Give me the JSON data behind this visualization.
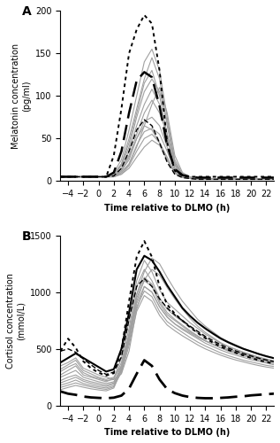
{
  "time": [
    -5,
    -4,
    -3,
    -2,
    -1,
    0,
    1,
    2,
    3,
    4,
    5,
    6,
    7,
    8,
    9,
    10,
    11,
    12,
    13,
    14,
    15,
    16,
    17,
    18,
    19,
    20,
    21,
    22,
    23
  ],
  "panel_A_title": "A",
  "panel_B_title": "B",
  "A_ylabel": "Melatonin concentration\n(pg/ml)",
  "B_ylabel": "Cortisol concentration\n(mmol/L)",
  "xlabel": "Time relative to DLMO (h)",
  "A_ylim": [
    0,
    200
  ],
  "B_ylim": [
    0,
    1500
  ],
  "xlim": [
    -5,
    23
  ],
  "A_yticks": [
    0,
    50,
    100,
    150,
    200
  ],
  "B_yticks": [
    0,
    500,
    1000,
    1500
  ],
  "xticks": [
    -4,
    -2,
    0,
    2,
    4,
    6,
    8,
    10,
    12,
    14,
    16,
    18,
    20,
    22
  ],
  "grey_color": "#a0a0a0",
  "black_color": "#000000",
  "A_grey_lines": [
    [
      5,
      5,
      5,
      5,
      5,
      5,
      5,
      5,
      10,
      20,
      40,
      65,
      90,
      110,
      80,
      30,
      10,
      5,
      3,
      2,
      2,
      2,
      2,
      2,
      2,
      2,
      2,
      2,
      2
    ],
    [
      5,
      5,
      5,
      5,
      5,
      5,
      5,
      8,
      18,
      40,
      75,
      105,
      120,
      105,
      70,
      25,
      8,
      4,
      3,
      2,
      2,
      2,
      2,
      2,
      2,
      2,
      2,
      2,
      2
    ],
    [
      5,
      5,
      5,
      5,
      5,
      5,
      5,
      8,
      15,
      30,
      55,
      80,
      95,
      80,
      55,
      20,
      7,
      4,
      3,
      2,
      2,
      2,
      2,
      2,
      2,
      2,
      2,
      2,
      2
    ],
    [
      5,
      5,
      5,
      5,
      5,
      5,
      5,
      5,
      12,
      25,
      50,
      70,
      75,
      65,
      40,
      15,
      6,
      4,
      3,
      2,
      2,
      2,
      2,
      2,
      2,
      2,
      2,
      2,
      2
    ],
    [
      5,
      5,
      5,
      5,
      5,
      5,
      5,
      5,
      10,
      20,
      42,
      58,
      62,
      55,
      35,
      12,
      5,
      3,
      2,
      2,
      2,
      2,
      2,
      2,
      2,
      2,
      2,
      2,
      2
    ],
    [
      5,
      5,
      5,
      5,
      5,
      5,
      5,
      5,
      8,
      18,
      35,
      50,
      55,
      45,
      28,
      10,
      5,
      3,
      2,
      2,
      2,
      2,
      2,
      2,
      2,
      2,
      2,
      2,
      2
    ],
    [
      5,
      5,
      5,
      5,
      5,
      5,
      5,
      6,
      12,
      28,
      50,
      65,
      60,
      45,
      25,
      10,
      5,
      3,
      2,
      2,
      2,
      2,
      2,
      2,
      2,
      2,
      2,
      2,
      2
    ],
    [
      5,
      5,
      5,
      5,
      5,
      5,
      5,
      5,
      8,
      15,
      28,
      40,
      48,
      42,
      25,
      9,
      4,
      3,
      2,
      2,
      2,
      2,
      2,
      2,
      2,
      2,
      2,
      2,
      2
    ],
    [
      5,
      5,
      5,
      5,
      5,
      5,
      5,
      8,
      20,
      45,
      80,
      115,
      130,
      100,
      55,
      18,
      7,
      4,
      3,
      2,
      2,
      2,
      2,
      2,
      2,
      2,
      2,
      2,
      2
    ],
    [
      5,
      5,
      5,
      5,
      5,
      5,
      5,
      10,
      25,
      60,
      100,
      140,
      155,
      130,
      75,
      22,
      8,
      4,
      3,
      2,
      2,
      2,
      2,
      2,
      2,
      2,
      2,
      2,
      2
    ],
    [
      5,
      5,
      5,
      5,
      5,
      5,
      5,
      8,
      20,
      50,
      85,
      120,
      145,
      120,
      65,
      20,
      7,
      4,
      3,
      2,
      2,
      2,
      2,
      2,
      2,
      2,
      2,
      2,
      2
    ],
    [
      5,
      5,
      5,
      5,
      5,
      5,
      5,
      6,
      14,
      35,
      65,
      90,
      108,
      90,
      50,
      15,
      6,
      3,
      2,
      2,
      2,
      2,
      2,
      2,
      2,
      2,
      2,
      2,
      2
    ]
  ],
  "A_dotted_line": [
    5,
    5,
    5,
    5,
    5,
    5,
    5,
    30,
    85,
    150,
    178,
    195,
    185,
    130,
    45,
    12,
    6,
    5,
    5,
    5,
    5,
    5,
    5,
    5,
    5,
    5,
    5,
    5,
    5
  ],
  "A_long_dashed_line": [
    5,
    5,
    5,
    5,
    5,
    5,
    5,
    10,
    35,
    80,
    118,
    128,
    122,
    88,
    42,
    14,
    7,
    5,
    4,
    4,
    4,
    4,
    4,
    4,
    4,
    4,
    4,
    4,
    4
  ],
  "A_short_dashed_line": [
    5,
    5,
    5,
    5,
    5,
    5,
    5,
    6,
    15,
    35,
    60,
    72,
    65,
    45,
    22,
    8,
    4,
    3,
    2,
    2,
    2,
    2,
    2,
    2,
    2,
    2,
    2,
    2,
    2
  ],
  "B_grey_lines": [
    [
      350,
      380,
      420,
      330,
      300,
      270,
      250,
      230,
      280,
      480,
      850,
      1050,
      1000,
      870,
      780,
      720,
      680,
      640,
      600,
      570,
      540,
      510,
      490,
      470,
      450,
      430,
      410,
      395,
      380
    ],
    [
      320,
      360,
      400,
      310,
      280,
      250,
      230,
      250,
      350,
      600,
      950,
      1100,
      1050,
      900,
      800,
      750,
      700,
      650,
      610,
      570,
      540,
      510,
      490,
      470,
      450,
      430,
      415,
      400,
      385
    ],
    [
      300,
      340,
      370,
      290,
      260,
      240,
      220,
      230,
      380,
      680,
      1050,
      1200,
      1100,
      950,
      850,
      790,
      740,
      690,
      640,
      600,
      560,
      530,
      500,
      480,
      460,
      440,
      420,
      405,
      390
    ],
    [
      270,
      310,
      350,
      270,
      250,
      230,
      210,
      240,
      420,
      750,
      1100,
      1280,
      1180,
      1020,
      910,
      850,
      790,
      730,
      680,
      630,
      590,
      550,
      520,
      495,
      470,
      450,
      425,
      405,
      390
    ],
    [
      250,
      280,
      310,
      250,
      230,
      210,
      195,
      210,
      320,
      580,
      900,
      1050,
      1000,
      870,
      780,
      720,
      670,
      630,
      590,
      550,
      520,
      490,
      465,
      445,
      425,
      405,
      390,
      375,
      360
    ],
    [
      220,
      250,
      270,
      230,
      210,
      195,
      180,
      200,
      350,
      640,
      980,
      1130,
      1070,
      920,
      820,
      760,
      710,
      660,
      615,
      575,
      540,
      510,
      480,
      460,
      440,
      420,
      400,
      385,
      370
    ],
    [
      200,
      225,
      250,
      215,
      195,
      180,
      168,
      190,
      310,
      560,
      870,
      1010,
      960,
      830,
      740,
      690,
      645,
      600,
      560,
      525,
      495,
      465,
      440,
      420,
      400,
      385,
      370,
      355,
      345
    ],
    [
      180,
      200,
      225,
      195,
      178,
      165,
      155,
      175,
      290,
      530,
      830,
      970,
      920,
      795,
      710,
      660,
      615,
      575,
      535,
      500,
      472,
      445,
      422,
      402,
      385,
      368,
      353,
      340,
      330
    ],
    [
      160,
      180,
      200,
      180,
      165,
      152,
      143,
      165,
      340,
      620,
      980,
      1180,
      1300,
      1250,
      1130,
      1020,
      920,
      840,
      760,
      700,
      650,
      600,
      565,
      535,
      505,
      480,
      458,
      438,
      420
    ],
    [
      140,
      160,
      178,
      162,
      148,
      138,
      130,
      155,
      310,
      580,
      920,
      1110,
      1200,
      1150,
      1040,
      940,
      850,
      770,
      700,
      645,
      600,
      555,
      522,
      495,
      470,
      448,
      428,
      410,
      395
    ]
  ],
  "B_dotted_line": [
    480,
    590,
    510,
    390,
    330,
    290,
    265,
    285,
    490,
    920,
    1310,
    1450,
    1310,
    1050,
    890,
    810,
    750,
    690,
    640,
    595,
    555,
    520,
    492,
    465,
    442,
    420,
    400,
    385,
    370
  ],
  "B_long_dashed_line": [
    125,
    105,
    95,
    80,
    72,
    68,
    65,
    70,
    88,
    150,
    280,
    400,
    350,
    230,
    145,
    110,
    88,
    75,
    68,
    65,
    65,
    68,
    72,
    78,
    82,
    90,
    95,
    100,
    105
  ],
  "B_short_dashed_line": [
    480,
    500,
    470,
    410,
    360,
    310,
    275,
    295,
    430,
    760,
    1050,
    1120,
    1050,
    940,
    860,
    800,
    750,
    700,
    655,
    610,
    572,
    538,
    508,
    482,
    458,
    438,
    418,
    402,
    388
  ],
  "B_solid_black_line": [
    380,
    420,
    460,
    420,
    380,
    340,
    300,
    320,
    500,
    820,
    1200,
    1320,
    1280,
    1180,
    1060,
    960,
    860,
    790,
    730,
    680,
    635,
    592,
    558,
    528,
    500,
    478,
    455,
    435,
    418
  ]
}
